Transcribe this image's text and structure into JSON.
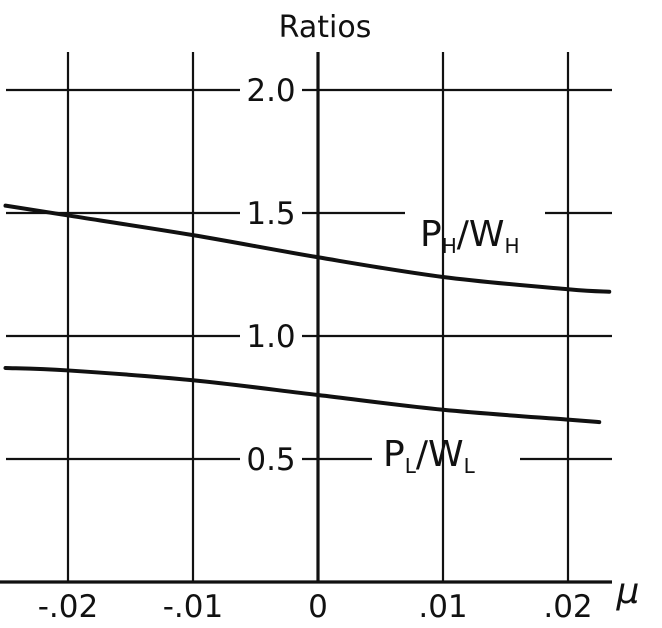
{
  "chart_data": {
    "type": "line",
    "title": "",
    "ylabel": "Ratios",
    "xlabel": "μ",
    "xlim": [
      -0.025,
      0.0235
    ],
    "ylim": [
      0,
      2.2
    ],
    "x_ticks": [
      {
        "value": -0.02,
        "label": "-.02"
      },
      {
        "value": -0.01,
        "label": "-.01"
      },
      {
        "value": 0,
        "label": "0"
      },
      {
        "value": 0.01,
        "label": ".01"
      },
      {
        "value": 0.02,
        "label": ".02"
      }
    ],
    "y_ticks": [
      {
        "value": 0.5,
        "label": "0.5"
      },
      {
        "value": 1.0,
        "label": "1.0"
      },
      {
        "value": 1.5,
        "label": "1.5"
      },
      {
        "value": 2.0,
        "label": "2.0"
      }
    ],
    "grid": true,
    "series": [
      {
        "name": "PH/WH",
        "label_main": [
          "P",
          "/W"
        ],
        "label_sub": [
          "H",
          "H"
        ],
        "x": [
          -0.025,
          -0.02,
          -0.01,
          0,
          0.01,
          0.02,
          0.0233
        ],
        "y": [
          1.53,
          1.49,
          1.41,
          1.32,
          1.24,
          1.19,
          1.18
        ]
      },
      {
        "name": "PL/WL",
        "label_main": [
          "P",
          "/W"
        ],
        "label_sub": [
          "L",
          "L"
        ],
        "x": [
          -0.025,
          -0.02,
          -0.01,
          0,
          0.01,
          0.02,
          0.0225
        ],
        "y": [
          0.87,
          0.86,
          0.82,
          0.76,
          0.7,
          0.66,
          0.65
        ]
      }
    ]
  }
}
